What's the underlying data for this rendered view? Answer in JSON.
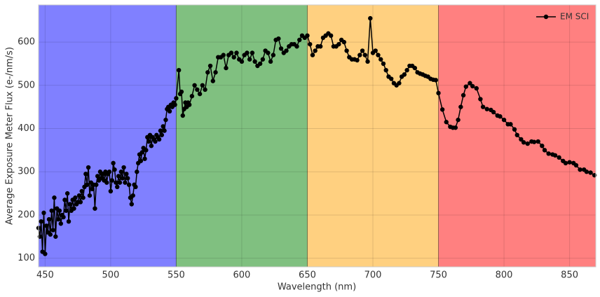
{
  "chart_data": {
    "type": "line",
    "xlabel": "Wavelength (nm)",
    "ylabel": "Average Exposure Meter Flux (e-/nm/s)",
    "xlim": [
      445,
      870
    ],
    "ylim": [
      80,
      686
    ],
    "xticks": [
      450,
      500,
      550,
      600,
      650,
      700,
      750,
      800,
      850
    ],
    "yticks": [
      100,
      200,
      300,
      400,
      500,
      600
    ],
    "grid": true,
    "legend": "upper right",
    "bands": {
      "edges": [
        550,
        650,
        750
      ],
      "colors": [
        "#8080ff",
        "#80c080",
        "#ffd080",
        "#ff8080"
      ]
    },
    "series": [
      {
        "name": "EM SCI",
        "color": "#000000",
        "x": [
          445,
          446,
          447,
          448,
          449,
          450,
          451,
          452,
          453,
          454,
          455,
          456,
          457,
          458,
          459,
          460,
          461,
          462,
          463,
          464,
          465,
          466,
          467,
          468,
          469,
          470,
          471,
          472,
          473,
          474,
          475,
          476,
          477,
          478,
          479,
          480,
          481,
          482,
          483,
          484,
          485,
          486,
          487,
          488,
          489,
          490,
          491,
          492,
          493,
          494,
          495,
          496,
          497,
          498,
          499,
          500,
          501,
          502,
          503,
          504,
          505,
          506,
          507,
          508,
          509,
          510,
          511,
          512,
          513,
          514,
          515,
          516,
          517,
          518,
          519,
          520,
          521,
          522,
          523,
          524,
          525,
          526,
          527,
          528,
          529,
          530,
          531,
          532,
          533,
          534,
          535,
          536,
          537,
          538,
          539,
          540,
          541,
          542,
          543,
          544,
          545,
          546,
          547,
          548,
          549,
          550,
          552,
          553,
          554,
          555,
          556,
          557,
          558,
          559,
          560,
          562,
          564,
          566,
          568,
          570,
          572,
          574,
          576,
          578,
          580,
          582,
          584,
          586,
          588,
          590,
          592,
          594,
          596,
          598,
          600,
          602,
          604,
          606,
          608,
          610,
          612,
          614,
          616,
          618,
          620,
          622,
          624,
          626,
          628,
          630,
          632,
          634,
          636,
          638,
          640,
          642,
          644,
          646,
          648,
          650,
          652,
          654,
          656,
          658,
          660,
          662,
          664,
          666,
          668,
          670,
          672,
          674,
          676,
          678,
          680,
          682,
          684,
          686,
          688,
          690,
          692,
          694,
          696,
          698,
          700,
          702,
          704,
          706,
          708,
          710,
          712,
          714,
          716,
          718,
          720,
          722,
          724,
          726,
          728,
          730,
          732,
          734,
          736,
          738,
          740,
          742,
          744,
          746,
          748,
          750,
          753,
          756,
          759,
          761,
          763,
          765,
          767,
          769,
          771,
          774,
          776,
          779,
          782,
          784,
          787,
          790,
          792,
          795,
          797,
          800,
          803,
          805,
          808,
          810,
          813,
          815,
          818,
          821,
          823,
          826,
          829,
          831,
          834,
          837,
          839,
          842,
          845,
          847,
          850,
          853,
          855,
          858,
          861,
          863,
          866,
          869
        ],
        "values": [
          170,
          150,
          185,
          115,
          205,
          110,
          175,
          160,
          190,
          155,
          210,
          165,
          240,
          150,
          215,
          190,
          210,
          180,
          200,
          195,
          235,
          210,
          250,
          185,
          225,
          210,
          235,
          215,
          240,
          225,
          230,
          245,
          230,
          255,
          240,
          265,
          295,
          270,
          310,
          245,
          275,
          260,
          270,
          215,
          270,
          290,
          280,
          300,
          285,
          295,
          280,
          300,
          275,
          295,
          300,
          255,
          280,
          320,
          305,
          275,
          265,
          290,
          275,
          300,
          285,
          310,
          275,
          295,
          285,
          270,
          240,
          225,
          245,
          270,
          265,
          300,
          320,
          340,
          325,
          345,
          355,
          330,
          350,
          380,
          370,
          385,
          360,
          380,
          375,
          370,
          385,
          380,
          375,
          395,
          385,
          405,
          395,
          420,
          445,
          450,
          440,
          455,
          450,
          460,
          455,
          470,
          535,
          480,
          485,
          430,
          445,
          460,
          450,
          460,
          455,
          475,
          500,
          490,
          480,
          500,
          490,
          530,
          545,
          510,
          530,
          565,
          565,
          570,
          540,
          570,
          575,
          565,
          575,
          560,
          555,
          570,
          575,
          560,
          575,
          555,
          545,
          550,
          560,
          580,
          575,
          555,
          570,
          605,
          608,
          585,
          575,
          580,
          590,
          595,
          595,
          590,
          605,
          615,
          610,
          615,
          595,
          570,
          580,
          590,
          590,
          610,
          615,
          620,
          615,
          590,
          590,
          595,
          605,
          600,
          580,
          565,
          560,
          560,
          558,
          570,
          580,
          570,
          555,
          655,
          575,
          580,
          570,
          560,
          550,
          535,
          520,
          515,
          505,
          500,
          505,
          520,
          525,
          535,
          545,
          545,
          540,
          530,
          527,
          525,
          522,
          520,
          515,
          513,
          512,
          482,
          444,
          415,
          404,
          402,
          402,
          420,
          450,
          477,
          497,
          505,
          498,
          493,
          468,
          450,
          445,
          443,
          438,
          430,
          428,
          420,
          410,
          410,
          398,
          385,
          375,
          368,
          365,
          370,
          369,
          370,
          360,
          350,
          342,
          340,
          338,
          333,
          325,
          320,
          322,
          320,
          315,
          305,
          305,
          300,
          298,
          292
        ]
      }
    ]
  }
}
